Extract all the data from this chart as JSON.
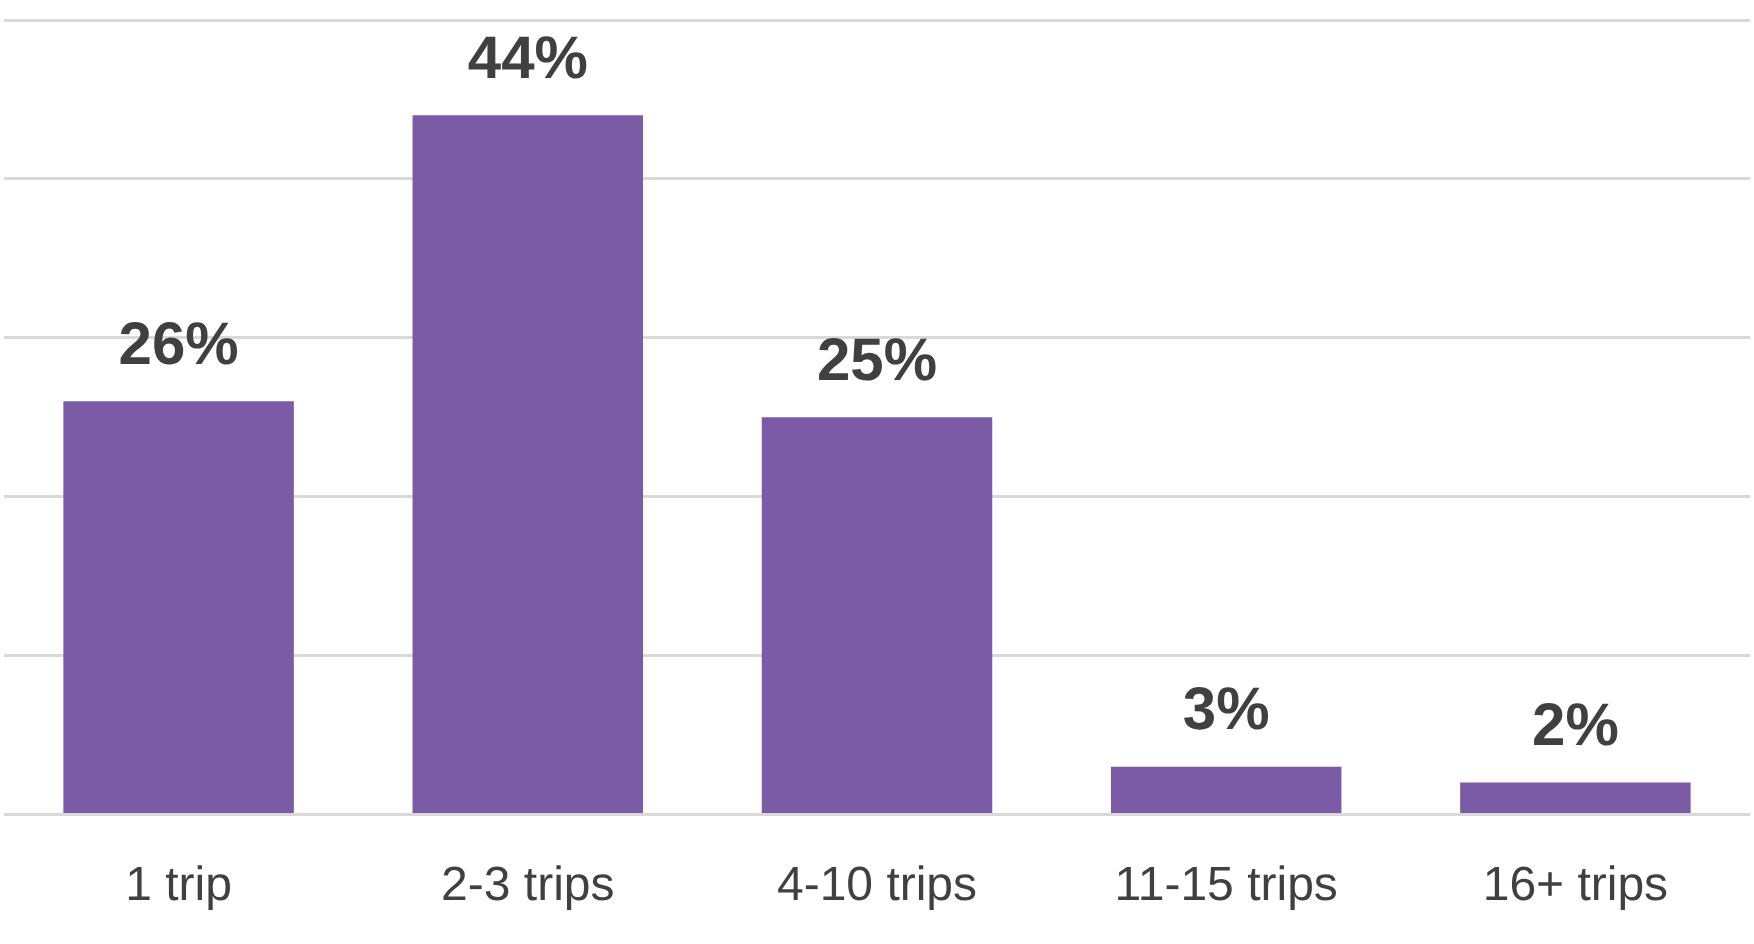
{
  "chart_data": {
    "type": "bar",
    "categories": [
      "1 trip",
      "2-3 trips",
      "4-10 trips",
      "11-15 trips",
      "16+ trips"
    ],
    "values": [
      26,
      44,
      25,
      3,
      2
    ],
    "color": "#7b5aa6",
    "value_labels": [
      "26%",
      "44%",
      "25%",
      "3%",
      "2%"
    ],
    "ylim": [
      0,
      50
    ],
    "grid": "y",
    "tick_labels": "x",
    "legend": false
  }
}
